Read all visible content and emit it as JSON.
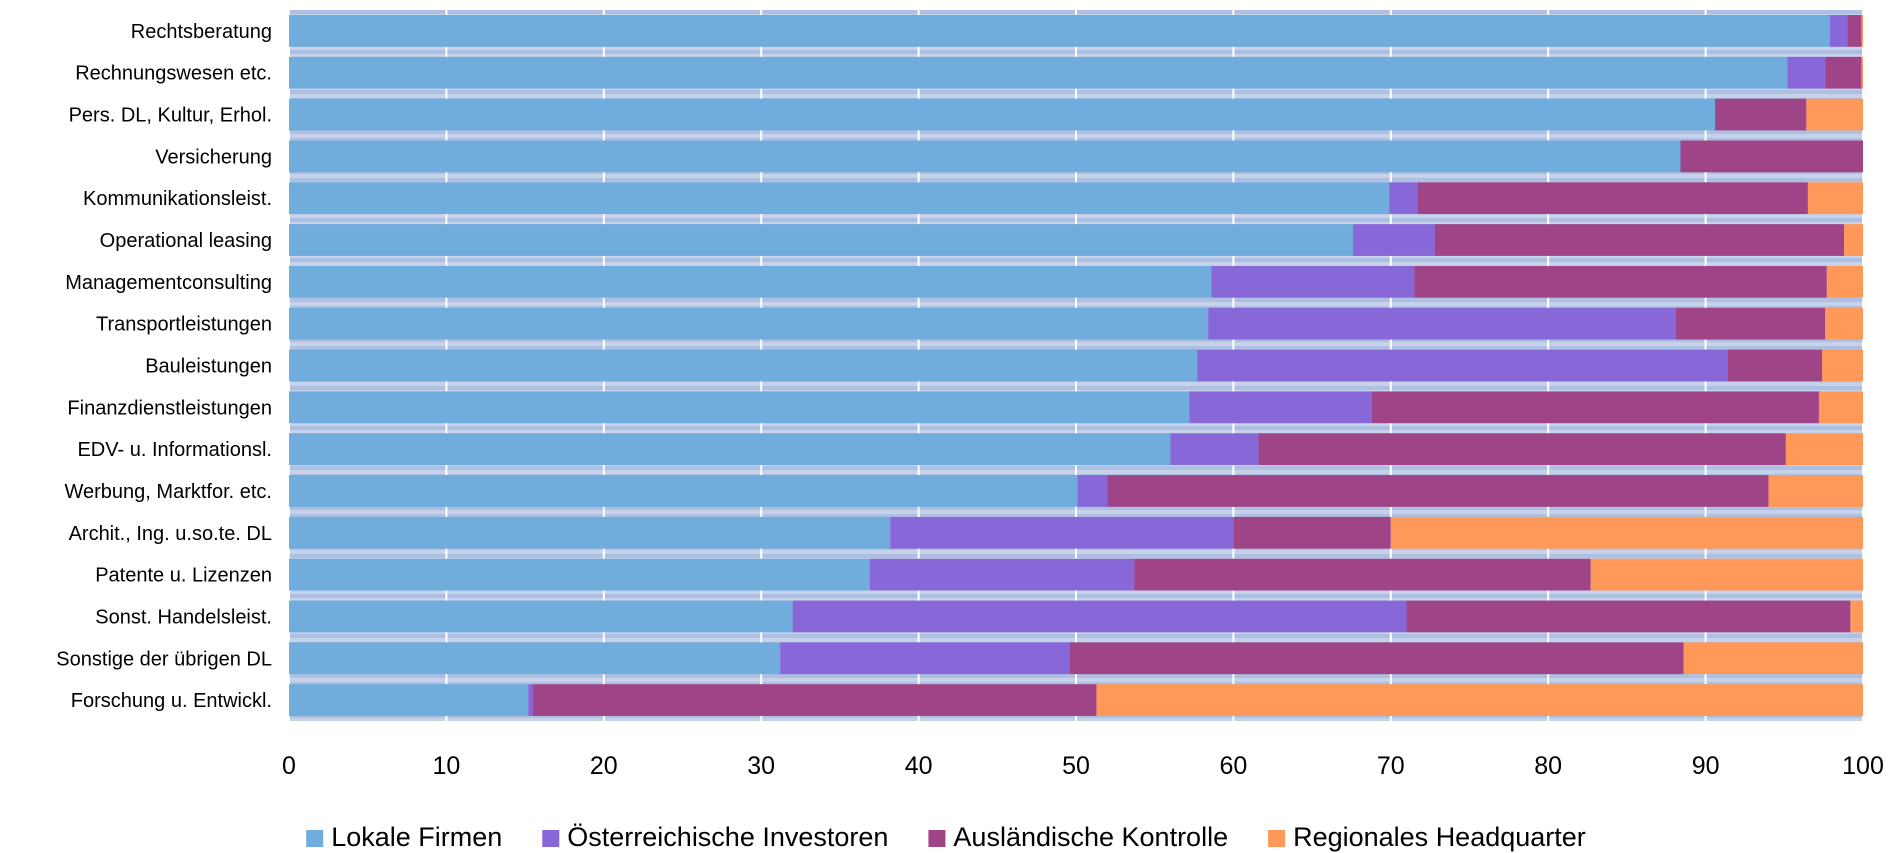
{
  "chart_data": {
    "type": "bar",
    "orientation": "horizontal",
    "stacked": true,
    "categories": [
      "Rechtsberatung",
      "Rechnungswesen etc.",
      "Pers. DL, Kultur, Erhol.",
      "Versicherung",
      "Kommunikationsleist.",
      "Operational leasing",
      "Managementconsulting",
      "Transportleistungen",
      "Bauleistungen",
      "Finanzdienstleistungen",
      "EDV- u. Informationsl.",
      "Werbung, Marktfor. etc.",
      "Archit., Ing. u.so.te. DL",
      "Patente u. Lizenzen",
      "Sonst. Handelsleist.",
      "Sonstige der übrigen DL",
      "Forschung u. Entwickl."
    ],
    "series": [
      {
        "name": "Lokale Firmen",
        "color": "#70ACDC",
        "values": [
          97.9,
          95.2,
          90.6,
          88.4,
          69.9,
          67.6,
          58.6,
          58.4,
          57.7,
          57.2,
          56.0,
          50.1,
          38.2,
          36.9,
          32.0,
          31.2,
          15.2
        ]
      },
      {
        "name": "Österreichische Investoren",
        "color": "#8868D8",
        "values": [
          1.1,
          2.4,
          0.0,
          0.0,
          1.8,
          5.2,
          12.9,
          29.7,
          33.7,
          11.6,
          5.6,
          1.9,
          21.8,
          16.8,
          39.0,
          18.4,
          0.3
        ]
      },
      {
        "name": "Ausländische Kontrolle",
        "color": "#A04488",
        "values": [
          0.9,
          2.3,
          5.8,
          11.6,
          24.8,
          26.0,
          26.2,
          9.5,
          6.0,
          28.4,
          33.5,
          42.0,
          10.0,
          29.0,
          28.2,
          39.0,
          35.8
        ]
      },
      {
        "name": "Regionales Headquarter",
        "color": "#FF9858",
        "values": [
          0.1,
          0.1,
          3.6,
          0.0,
          3.5,
          1.2,
          2.3,
          2.4,
          2.6,
          2.8,
          4.9,
          6.0,
          30.0,
          17.3,
          0.8,
          11.4,
          48.7
        ]
      }
    ],
    "x_ticks": [
      "0",
      "10",
      "20",
      "30",
      "40",
      "50",
      "60",
      "70",
      "80",
      "90",
      "100"
    ],
    "xlim": [
      0,
      100
    ],
    "grid": true,
    "legend_position": "bottom",
    "title": "",
    "xlabel": "",
    "ylabel": ""
  }
}
